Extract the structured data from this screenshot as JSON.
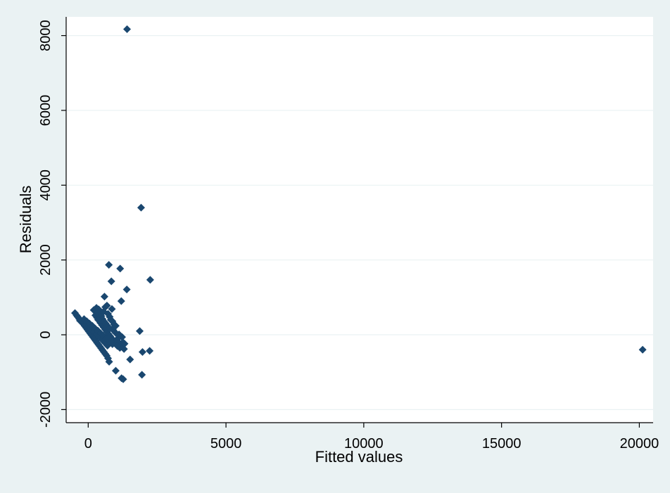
{
  "chart_data": {
    "type": "scatter",
    "title": "",
    "xlabel": "Fitted values",
    "ylabel": "Residuals",
    "xlim": [
      -800,
      20500
    ],
    "ylim": [
      -2350,
      8500
    ],
    "xticks": [
      0,
      5000,
      10000,
      15000,
      20000
    ],
    "xtick_labels": [
      "0",
      "5000",
      "10000",
      "15000",
      "20000"
    ],
    "yticks": [
      -2000,
      0,
      2000,
      4000,
      6000,
      8000
    ],
    "ytick_labels": [
      "-2000",
      "0",
      "2000",
      "4000",
      "6000",
      "8000"
    ],
    "grid": true,
    "colors": {
      "background": "#eaf2f3",
      "plot_area": "#ffffff",
      "marker": "#1a476f",
      "grid": "#eaf2f3"
    },
    "series": [
      {
        "points": [
          [
            1410,
            8170
          ],
          [
            1920,
            3400
          ],
          [
            750,
            1870
          ],
          [
            1160,
            1770
          ],
          [
            2250,
            1470
          ],
          [
            840,
            1430
          ],
          [
            1400,
            1210
          ],
          [
            590,
            1020
          ],
          [
            1200,
            900
          ],
          [
            860,
            690
          ],
          [
            1870,
            100
          ],
          [
            2230,
            -430
          ],
          [
            1970,
            -460
          ],
          [
            1520,
            -660
          ],
          [
            1000,
            -960
          ],
          [
            1950,
            -1070
          ],
          [
            1210,
            -1160
          ],
          [
            1270,
            -1190
          ],
          [
            20120,
            -400
          ],
          [
            -480,
            580
          ],
          [
            -420,
            520
          ],
          [
            -380,
            480
          ],
          [
            -330,
            430
          ],
          [
            -280,
            380
          ],
          [
            -230,
            330
          ],
          [
            -180,
            290
          ],
          [
            -130,
            240
          ],
          [
            -80,
            190
          ],
          [
            -30,
            140
          ],
          [
            20,
            90
          ],
          [
            70,
            40
          ],
          [
            120,
            -10
          ],
          [
            170,
            -60
          ],
          [
            220,
            -110
          ],
          [
            270,
            -160
          ],
          [
            320,
            -210
          ],
          [
            370,
            -260
          ],
          [
            420,
            -310
          ],
          [
            470,
            -360
          ],
          [
            520,
            -410
          ],
          [
            570,
            -460
          ],
          [
            620,
            -510
          ],
          [
            670,
            -560
          ],
          [
            720,
            -630
          ],
          [
            760,
            -720
          ],
          [
            -300,
            380
          ],
          [
            -200,
            330
          ],
          [
            -100,
            260
          ],
          [
            0,
            220
          ],
          [
            100,
            150
          ],
          [
            200,
            90
          ],
          [
            300,
            20
          ],
          [
            400,
            -50
          ],
          [
            500,
            -130
          ],
          [
            600,
            -210
          ],
          [
            700,
            -290
          ],
          [
            -150,
            420
          ],
          [
            -50,
            360
          ],
          [
            50,
            300
          ],
          [
            150,
            240
          ],
          [
            250,
            170
          ],
          [
            350,
            110
          ],
          [
            450,
            40
          ],
          [
            550,
            -30
          ],
          [
            650,
            -100
          ],
          [
            200,
            660
          ],
          [
            300,
            720
          ],
          [
            380,
            680
          ],
          [
            420,
            560
          ],
          [
            480,
            500
          ],
          [
            520,
            420
          ],
          [
            560,
            620
          ],
          [
            620,
            740
          ],
          [
            680,
            780
          ],
          [
            720,
            560
          ],
          [
            780,
            480
          ],
          [
            820,
            400
          ],
          [
            880,
            360
          ],
          [
            940,
            280
          ],
          [
            260,
            520
          ],
          [
            320,
            460
          ],
          [
            360,
            400
          ],
          [
            440,
            320
          ],
          [
            500,
            260
          ],
          [
            560,
            200
          ],
          [
            620,
            140
          ],
          [
            680,
            80
          ],
          [
            740,
            20
          ],
          [
            800,
            -40
          ],
          [
            860,
            -100
          ],
          [
            920,
            -160
          ],
          [
            980,
            -220
          ],
          [
            330,
            600
          ],
          [
            900,
            130
          ],
          [
            960,
            220
          ],
          [
            1000,
            50
          ],
          [
            1050,
            -120
          ],
          [
            1100,
            -200
          ],
          [
            1150,
            -350
          ],
          [
            1180,
            -300
          ],
          [
            1230,
            -60
          ],
          [
            1260,
            -200
          ],
          [
            1300,
            -380
          ],
          [
            1320,
            -240
          ],
          [
            1120,
            10
          ],
          [
            1060,
            -300
          ],
          [
            880,
            -250
          ],
          [
            820,
            -180
          ],
          [
            760,
            -120
          ],
          [
            580,
            350
          ],
          [
            640,
            300
          ],
          [
            700,
            240
          ],
          [
            760,
            170
          ],
          [
            1000,
            240
          ]
        ]
      }
    ]
  }
}
